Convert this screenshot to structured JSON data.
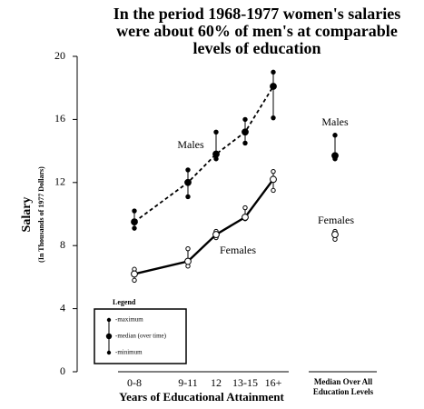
{
  "chart_data": {
    "type": "range-dot-line",
    "title": "In the period 1968-1977 women's salaries were about 60% of men's at comparable levels of education",
    "y_label": "Salary",
    "y_sublabel": "(In Thousands of 1977 Dollars)",
    "x_label": "Years of Educational Attainment",
    "summary_label": [
      "Median Over All",
      "Education Levels"
    ],
    "categories": [
      "0-8",
      "9-11",
      "12",
      "13-15",
      "16+"
    ],
    "ylim": [
      0,
      20
    ],
    "yticks": [
      0,
      4,
      8,
      12,
      16,
      20
    ],
    "series": [
      {
        "name": "Males",
        "color": "#000000",
        "line": "dashed",
        "marker": "filled",
        "median": [
          9.5,
          12.0,
          13.8,
          15.2,
          18.1
        ],
        "max": [
          10.2,
          12.8,
          15.2,
          16.0,
          19.0
        ],
        "min": [
          9.1,
          11.1,
          13.5,
          14.5,
          16.1
        ],
        "overall": {
          "max": 15.0,
          "median": 13.7,
          "min": 13.5
        }
      },
      {
        "name": "Females",
        "color": "#000000",
        "line": "solid",
        "marker": "hollow",
        "median": [
          6.2,
          7.0,
          8.7,
          9.8,
          12.2
        ],
        "max": [
          6.5,
          7.8,
          8.9,
          10.4,
          12.7
        ],
        "min": [
          5.8,
          6.7,
          8.5,
          9.7,
          11.5
        ],
        "overall": {
          "max": 8.9,
          "median": 8.7,
          "min": 8.4
        }
      }
    ],
    "legend": {
      "title": "Legend",
      "items": [
        "-maximum",
        "-median (over time)",
        "-minimum"
      ]
    }
  }
}
